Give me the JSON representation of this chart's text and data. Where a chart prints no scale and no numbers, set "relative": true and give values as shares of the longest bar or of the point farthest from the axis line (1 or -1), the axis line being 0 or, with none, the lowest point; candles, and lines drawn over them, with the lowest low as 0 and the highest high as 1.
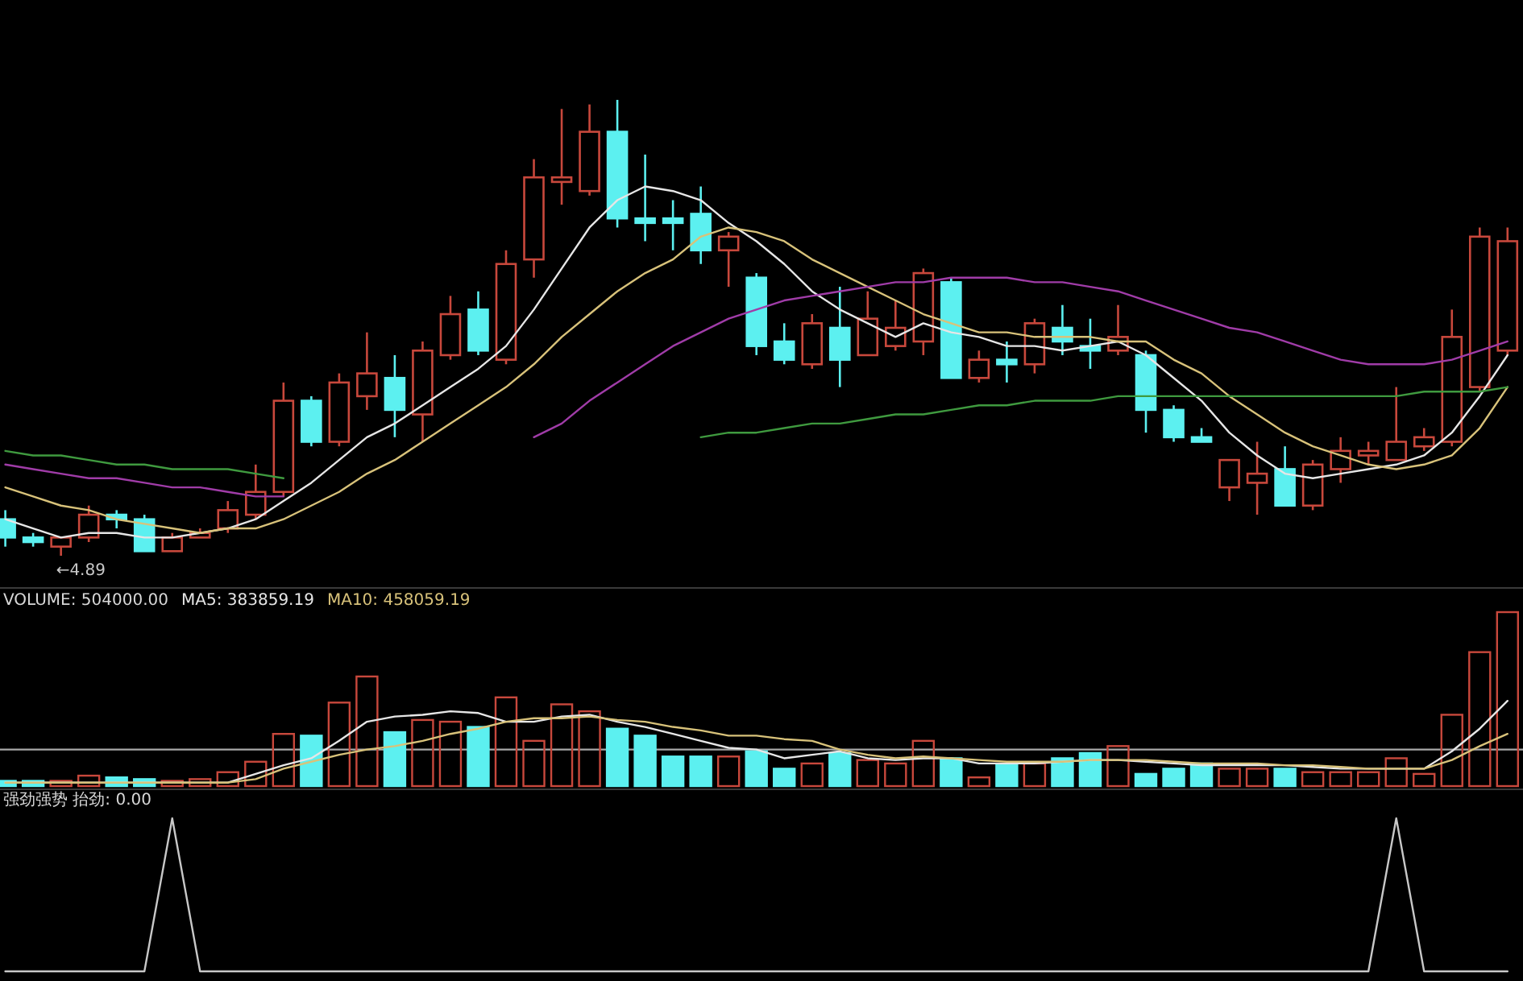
{
  "chart_data": [
    {
      "type": "candlestick",
      "relative": true,
      "categories": [
        null,
        null,
        null,
        null,
        null,
        null,
        null,
        null,
        null,
        null,
        null,
        null,
        null,
        null,
        null,
        null,
        null,
        null,
        null,
        null,
        null,
        null,
        null,
        null,
        null,
        null,
        null,
        null,
        null,
        null,
        null,
        null,
        null,
        null,
        null,
        null,
        null,
        null,
        null,
        null,
        null,
        null,
        null,
        null,
        null,
        null,
        null,
        null,
        null,
        null,
        null,
        null,
        null,
        null,
        null
      ],
      "ohlc": [
        [
          0.08,
          0.1,
          0.02,
          0.04
        ],
        [
          0.04,
          0.05,
          0.02,
          0.03
        ],
        [
          0.02,
          0.04,
          0,
          0.04
        ],
        [
          0.04,
          0.11,
          0.03,
          0.09
        ],
        [
          0.09,
          0.1,
          0.06,
          0.08
        ],
        [
          0.08,
          0.09,
          0.01,
          0.01
        ],
        [
          0.01,
          0.05,
          0.01,
          0.04
        ],
        [
          0.04,
          0.06,
          0.04,
          0.05
        ],
        [
          0.06,
          0.12,
          0.05,
          0.1
        ],
        [
          0.09,
          0.2,
          0.08,
          0.14
        ],
        [
          0.14,
          0.38,
          0.13,
          0.34
        ],
        [
          0.34,
          0.35,
          0.24,
          0.25
        ],
        [
          0.25,
          0.4,
          0.24,
          0.38
        ],
        [
          0.35,
          0.49,
          0.32,
          0.4
        ],
        [
          0.39,
          0.44,
          0.26,
          0.32
        ],
        [
          0.31,
          0.47,
          0.25,
          0.45
        ],
        [
          0.44,
          0.57,
          0.43,
          0.53
        ],
        [
          0.54,
          0.58,
          0.44,
          0.45
        ],
        [
          0.43,
          0.67,
          0.42,
          0.64
        ],
        [
          0.65,
          0.87,
          0.61,
          0.83
        ],
        [
          0.82,
          0.98,
          0.77,
          0.83
        ],
        [
          0.8,
          0.99,
          0.79,
          0.93
        ],
        [
          0.93,
          1,
          0.72,
          0.74
        ],
        [
          0.74,
          0.88,
          0.69,
          0.73
        ],
        [
          0.74,
          0.78,
          0.67,
          0.73
        ],
        [
          0.75,
          0.81,
          0.64,
          0.67
        ],
        [
          0.67,
          0.71,
          0.59,
          0.7
        ],
        [
          0.61,
          0.62,
          0.44,
          0.46
        ],
        [
          0.47,
          0.51,
          0.42,
          0.43
        ],
        [
          0.42,
          0.53,
          0.41,
          0.51
        ],
        [
          0.5,
          0.59,
          0.37,
          0.43
        ],
        [
          0.44,
          0.58,
          0.44,
          0.52
        ],
        [
          0.46,
          0.56,
          0.45,
          0.5
        ],
        [
          0.47,
          0.63,
          0.44,
          0.62
        ],
        [
          0.6,
          0.61,
          0.39,
          0.39
        ],
        [
          0.39,
          0.45,
          0.38,
          0.43
        ],
        [
          0.43,
          0.47,
          0.38,
          0.42
        ],
        [
          0.42,
          0.52,
          0.4,
          0.51
        ],
        [
          0.5,
          0.55,
          0.44,
          0.47
        ],
        [
          0.46,
          0.52,
          0.41,
          0.45
        ],
        [
          0.45,
          0.55,
          0.44,
          0.48
        ],
        [
          0.44,
          0.45,
          0.27,
          0.32
        ],
        [
          0.32,
          0.33,
          0.25,
          0.26
        ],
        [
          0.26,
          0.28,
          0.25,
          0.25
        ],
        [
          0.15,
          0.21,
          0.12,
          0.21
        ],
        [
          0.16,
          0.25,
          0.09,
          0.18
        ],
        [
          0.19,
          0.24,
          0.11,
          0.11
        ],
        [
          0.11,
          0.21,
          0.1,
          0.2
        ],
        [
          0.19,
          0.26,
          0.16,
          0.23
        ],
        [
          0.22,
          0.25,
          0.2,
          0.23
        ],
        [
          0.21,
          0.37,
          0.21,
          0.25
        ],
        [
          0.24,
          0.28,
          0.23,
          0.26
        ],
        [
          0.25,
          0.54,
          0.24,
          0.48
        ],
        [
          0.37,
          0.72,
          0.36,
          0.7
        ],
        [
          0.45,
          0.72,
          0.44,
          0.69
        ]
      ],
      "colors": [
        "#5cf0f0",
        "#5cf0f0",
        "#c8483c",
        "#c8483c",
        "#5cf0f0",
        "#5cf0f0",
        "#c8483c",
        "#c8483c",
        "#c8483c",
        "#c8483c",
        "#c8483c",
        "#5cf0f0",
        "#c8483c",
        "#c8483c",
        "#5cf0f0",
        "#c8483c",
        "#c8483c",
        "#5cf0f0",
        "#c8483c",
        "#c8483c",
        "#c8483c",
        "#c8483c",
        "#5cf0f0",
        "#5cf0f0",
        "#5cf0f0",
        "#5cf0f0",
        "#c8483c",
        "#5cf0f0",
        "#5cf0f0",
        "#c8483c",
        "#5cf0f0",
        "#c8483c",
        "#c8483c",
        "#c8483c",
        "#5cf0f0",
        "#c8483c",
        "#5cf0f0",
        "#c8483c",
        "#5cf0f0",
        "#5cf0f0",
        "#c8483c",
        "#5cf0f0",
        "#5cf0f0",
        "#5cf0f0",
        "#c8483c",
        "#c8483c",
        "#5cf0f0",
        "#c8483c",
        "#c8483c",
        "#c8483c",
        "#c8483c",
        "#c8483c",
        "#c8483c",
        "#c8483c",
        "#c8483c"
      ],
      "series": [
        {
          "type": "line",
          "color": "#e6e6e6",
          "values": [
            0.08,
            0.06,
            0.04,
            0.05,
            0.05,
            0.04,
            0.04,
            0.05,
            0.06,
            0.08,
            0.12,
            0.16,
            0.21,
            0.26,
            0.29,
            0.33,
            0.37,
            0.41,
            0.46,
            0.54,
            0.63,
            0.72,
            0.78,
            0.81,
            0.8,
            0.78,
            0.73,
            0.69,
            0.64,
            0.58,
            0.54,
            0.51,
            0.48,
            0.51,
            0.49,
            0.48,
            0.46,
            0.46,
            0.45,
            0.46,
            0.47,
            0.44,
            0.39,
            0.34,
            0.27,
            0.22,
            0.18,
            0.17,
            0.18,
            0.19,
            0.2,
            0.22,
            0.27,
            0.35,
            0.44
          ]
        },
        {
          "type": "line",
          "color": "#d8c27a",
          "values": [
            0.15,
            0.13,
            0.11,
            0.1,
            0.08,
            0.07,
            0.06,
            0.05,
            0.06,
            0.06,
            0.08,
            0.11,
            0.14,
            0.18,
            0.21,
            0.25,
            0.29,
            0.33,
            0.37,
            0.42,
            0.48,
            0.53,
            0.58,
            0.62,
            0.65,
            0.7,
            0.72,
            0.71,
            0.69,
            0.65,
            0.62,
            0.59,
            0.56,
            0.53,
            0.51,
            0.49,
            0.49,
            0.48,
            0.48,
            0.48,
            0.47,
            0.47,
            0.43,
            0.4,
            0.35,
            0.31,
            0.27,
            0.24,
            0.22,
            0.2,
            0.19,
            0.2,
            0.22,
            0.28,
            0.37
          ]
        },
        {
          "type": "line",
          "color": "#a03ca8",
          "values": [
            0.2,
            0.19,
            0.18,
            0.17,
            0.17,
            0.16,
            0.15,
            0.15,
            0.14,
            0.13,
            0.13,
            null,
            null,
            null,
            null,
            null,
            null,
            null,
            null,
            0.26,
            0.29,
            0.34,
            0.38,
            0.42,
            0.46,
            0.49,
            0.52,
            0.54,
            0.56,
            0.57,
            0.58,
            0.59,
            0.6,
            0.6,
            0.61,
            0.61,
            0.61,
            0.6,
            0.6,
            0.59,
            0.58,
            0.56,
            0.54,
            0.52,
            0.5,
            0.49,
            0.47,
            0.45,
            0.43,
            0.42,
            0.42,
            0.42,
            0.43,
            0.45,
            0.47
          ]
        },
        {
          "type": "line",
          "color": "#3f9a3f",
          "values": [
            0.23,
            0.22,
            0.22,
            0.21,
            0.2,
            0.2,
            0.19,
            0.19,
            0.19,
            0.18,
            0.17,
            null,
            null,
            null,
            null,
            null,
            null,
            null,
            null,
            null,
            null,
            null,
            null,
            null,
            null,
            0.26,
            0.27,
            0.27,
            0.28,
            0.29,
            0.29,
            0.3,
            0.31,
            0.31,
            0.32,
            0.33,
            0.33,
            0.34,
            0.34,
            0.34,
            0.35,
            0.35,
            0.35,
            0.35,
            0.35,
            0.35,
            0.35,
            0.35,
            0.35,
            0.35,
            0.35,
            0.36,
            0.36,
            0.36,
            0.37
          ]
        }
      ],
      "annotations": [
        "←4.89"
      ]
    },
    {
      "type": "bar",
      "relative": true,
      "categories": [
        null,
        null,
        null,
        null,
        null,
        null,
        null,
        null,
        null,
        null,
        null,
        null,
        null,
        null,
        null,
        null,
        null,
        null,
        null,
        null,
        null,
        null,
        null,
        null,
        null,
        null,
        null,
        null,
        null,
        null,
        null,
        null,
        null,
        null,
        null,
        null,
        null,
        null,
        null,
        null,
        null,
        null,
        null,
        null,
        null,
        null,
        null,
        null,
        null,
        null,
        null,
        null,
        null,
        null,
        null
      ],
      "series": [
        {
          "type": "bar",
          "values": [
            0.03,
            0.03,
            0.03,
            0.06,
            0.05,
            0.04,
            0.03,
            0.04,
            0.08,
            0.14,
            0.3,
            0.29,
            0.48,
            0.63,
            0.31,
            0.38,
            0.37,
            0.34,
            0.51,
            0.26,
            0.47,
            0.43,
            0.33,
            0.29,
            0.17,
            0.17,
            0.17,
            0.2,
            0.1,
            0.13,
            0.19,
            0.15,
            0.13,
            0.26,
            0.16,
            0.05,
            0.12,
            0.13,
            0.16,
            0.19,
            0.23,
            0.07,
            0.1,
            0.13,
            0.1,
            0.1,
            0.1,
            0.08,
            0.08,
            0.08,
            0.16,
            0.07,
            0.41,
            0.77,
            1.0
          ],
          "colors": [
            "#5cf0f0",
            "#5cf0f0",
            "#c8483c",
            "#c8483c",
            "#5cf0f0",
            "#5cf0f0",
            "#c8483c",
            "#c8483c",
            "#c8483c",
            "#c8483c",
            "#c8483c",
            "#5cf0f0",
            "#c8483c",
            "#c8483c",
            "#5cf0f0",
            "#c8483c",
            "#c8483c",
            "#5cf0f0",
            "#c8483c",
            "#c8483c",
            "#c8483c",
            "#c8483c",
            "#5cf0f0",
            "#5cf0f0",
            "#5cf0f0",
            "#5cf0f0",
            "#c8483c",
            "#5cf0f0",
            "#5cf0f0",
            "#c8483c",
            "#5cf0f0",
            "#c8483c",
            "#c8483c",
            "#c8483c",
            "#5cf0f0",
            "#c8483c",
            "#5cf0f0",
            "#c8483c",
            "#5cf0f0",
            "#5cf0f0",
            "#c8483c",
            "#5cf0f0",
            "#5cf0f0",
            "#5cf0f0",
            "#c8483c",
            "#c8483c",
            "#5cf0f0",
            "#c8483c",
            "#c8483c",
            "#c8483c",
            "#c8483c",
            "#c8483c",
            "#c8483c",
            "#c8483c",
            "#c8483c"
          ]
        },
        {
          "type": "line",
          "color": "#e6e6e6",
          "values": [
            0.02,
            0.02,
            0.02,
            0.02,
            0.02,
            0.02,
            0.02,
            0.02,
            0.02,
            0.07,
            0.12,
            0.16,
            0.26,
            0.37,
            0.4,
            0.41,
            0.43,
            0.42,
            0.37,
            0.37,
            0.4,
            0.41,
            0.37,
            0.34,
            0.3,
            0.26,
            0.22,
            0.21,
            0.16,
            0.18,
            0.2,
            0.16,
            0.15,
            0.16,
            0.16,
            0.13,
            0.13,
            0.13,
            0.14,
            0.15,
            0.15,
            0.14,
            0.13,
            0.12,
            0.12,
            0.12,
            0.12,
            0.11,
            0.1,
            0.1,
            0.1,
            0.1,
            0.2,
            0.33,
            0.49
          ]
        },
        {
          "type": "line",
          "color": "#d8c27a",
          "values": [
            0.02,
            0.02,
            0.02,
            0.02,
            0.02,
            0.02,
            0.02,
            0.02,
            0.02,
            0.04,
            0.1,
            0.14,
            0.18,
            0.21,
            0.23,
            0.26,
            0.3,
            0.33,
            0.37,
            0.39,
            0.39,
            0.4,
            0.38,
            0.37,
            0.34,
            0.32,
            0.29,
            0.29,
            0.27,
            0.26,
            0.21,
            0.18,
            0.16,
            0.17,
            0.16,
            0.15,
            0.14,
            0.14,
            0.14,
            0.15,
            0.15,
            0.15,
            0.14,
            0.13,
            0.13,
            0.13,
            0.12,
            0.12,
            0.11,
            0.1,
            0.1,
            0.1,
            0.15,
            0.23,
            0.3
          ]
        }
      ],
      "ref_lines": [
        {
          "axis": "y",
          "value": 0.21,
          "color": "#a8a8a8"
        }
      ],
      "annotations": [
        "VOLUME: 504000.00",
        "MA5: 383859.19",
        "MA10: 458059.19"
      ]
    },
    {
      "type": "line",
      "relative": true,
      "color": "#c8c8c8",
      "categories": [
        null,
        null,
        null,
        null,
        null,
        null,
        null,
        null,
        null,
        null,
        null,
        null,
        null,
        null,
        null,
        null,
        null,
        null,
        null,
        null,
        null,
        null,
        null,
        null,
        null,
        null,
        null,
        null,
        null,
        null,
        null,
        null,
        null,
        null,
        null,
        null,
        null,
        null,
        null,
        null,
        null,
        null,
        null,
        null,
        null,
        null,
        null,
        null,
        null,
        null,
        null,
        null,
        null,
        null,
        null
      ],
      "values": [
        0,
        0,
        0,
        0,
        0,
        0,
        1,
        0,
        0,
        0,
        0,
        0,
        0,
        0,
        0,
        0,
        0,
        0,
        0,
        0,
        0,
        0,
        0,
        0,
        0,
        0,
        0,
        0,
        0,
        0,
        0,
        0,
        0,
        0,
        0,
        0,
        0,
        0,
        0,
        0,
        0,
        0,
        0,
        0,
        0,
        0,
        0,
        0,
        0,
        0,
        1,
        0,
        0,
        0,
        0
      ],
      "annotations": [
        "强劲强势 抬劲: 0.00"
      ]
    }
  ]
}
